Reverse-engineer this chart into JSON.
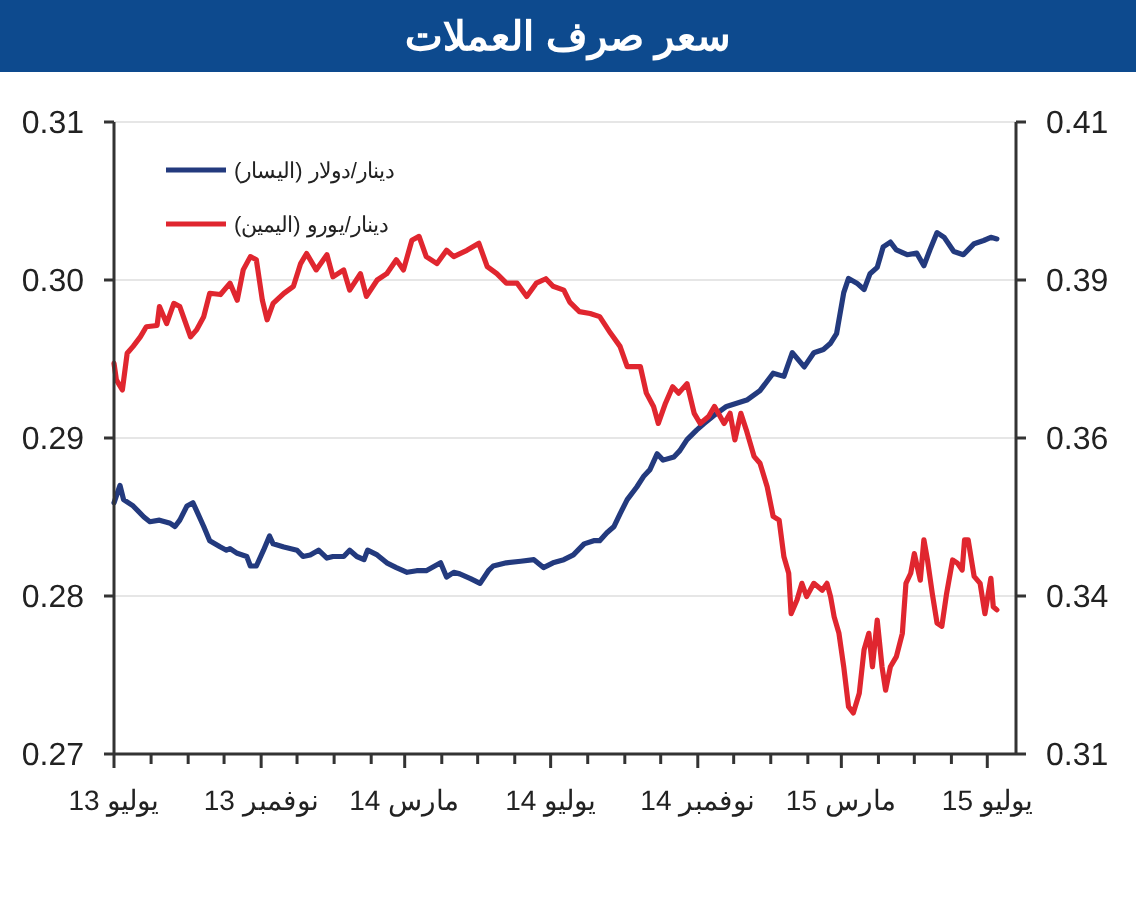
{
  "chart_data": {
    "type": "line",
    "title": "سعر صرف العملات",
    "xlim": [
      "2013-07-01",
      "2015-07-25"
    ],
    "xticks": [
      {
        "value": "2013-07-01",
        "label": "يوليو 13"
      },
      {
        "value": "2013-08-01",
        "label": null
      },
      {
        "value": "2013-09-01",
        "label": null
      },
      {
        "value": "2013-10-01",
        "label": null
      },
      {
        "value": "2013-11-01",
        "label": "نوفمبر 13"
      },
      {
        "value": "2013-12-01",
        "label": null
      },
      {
        "value": "2014-01-01",
        "label": null
      },
      {
        "value": "2014-02-01",
        "label": null
      },
      {
        "value": "2014-03-01",
        "label": "مارس 14"
      },
      {
        "value": "2014-04-01",
        "label": null
      },
      {
        "value": "2014-05-01",
        "label": null
      },
      {
        "value": "2014-06-01",
        "label": null
      },
      {
        "value": "2014-07-01",
        "label": "يوليو 14"
      },
      {
        "value": "2014-08-01",
        "label": null
      },
      {
        "value": "2014-09-01",
        "label": null
      },
      {
        "value": "2014-10-01",
        "label": null
      },
      {
        "value": "2014-11-01",
        "label": "نوفمبر 14"
      },
      {
        "value": "2014-12-01",
        "label": null
      },
      {
        "value": "2015-01-01",
        "label": null
      },
      {
        "value": "2015-02-01",
        "label": null
      },
      {
        "value": "2015-03-01",
        "label": "مارس 15"
      },
      {
        "value": "2015-04-01",
        "label": null
      },
      {
        "value": "2015-05-01",
        "label": null
      },
      {
        "value": "2015-06-01",
        "label": null
      },
      {
        "value": "2015-07-01",
        "label": "يوليو 15"
      }
    ],
    "ylim": [
      0.27,
      0.31
    ],
    "yticks": [
      0.27,
      0.28,
      0.29,
      {
        "value": 0.3,
        "label": "0.30"
      },
      0.31
    ],
    "y2lim": [
      0.31,
      0.41
    ],
    "y2ticks": [
      0.31,
      {
        "value": 0.335,
        "label": "0.34"
      },
      0.36,
      {
        "value": 0.385,
        "label": "0.39"
      },
      0.41
    ],
    "grid": "y",
    "legend": "top left",
    "series": [
      {
        "name": "دينار/دولار (اليسار)",
        "color": "#233a7e",
        "x": [
          "2013-07-01",
          "2013-07-06",
          "2013-07-09",
          "2013-07-17",
          "2013-07-26",
          "2013-07-31",
          "2013-08-08",
          "2013-08-17",
          "2013-08-21",
          "2013-08-25",
          "2013-08-31",
          "2013-09-05",
          "2013-09-08",
          "2013-09-14",
          "2013-09-19",
          "2013-09-28",
          "2013-10-03",
          "2013-10-06",
          "2013-10-12",
          "2013-10-20",
          "2013-10-23",
          "2013-10-28",
          "2013-11-03",
          "2013-11-08",
          "2013-11-11",
          "2013-11-20",
          "2013-12-01",
          "2013-12-06",
          "2013-12-12",
          "2013-12-19",
          "2013-12-26",
          "2013-12-31",
          "2014-01-09",
          "2014-01-14",
          "2014-01-20",
          "2014-01-26",
          "2014-01-29",
          "2014-02-06",
          "2014-02-14",
          "2014-02-22",
          "2014-03-03",
          "2014-03-11",
          "2014-03-19",
          "2014-03-31",
          "2014-04-05",
          "2014-04-11",
          "2014-04-16",
          "2014-04-25",
          "2014-05-03",
          "2014-05-10",
          "2014-05-14",
          "2014-05-25",
          "2014-06-06",
          "2014-06-17",
          "2014-06-25",
          "2014-07-03",
          "2014-07-12",
          "2014-07-20",
          "2014-07-29",
          "2014-08-06",
          "2014-08-11",
          "2014-08-17",
          "2014-08-23",
          "2014-08-28",
          "2014-09-03",
          "2014-09-11",
          "2014-09-17",
          "2014-09-22",
          "2014-09-28",
          "2014-10-03",
          "2014-10-12",
          "2014-10-17",
          "2014-10-23",
          "2014-10-31",
          "2014-11-06",
          "2014-11-14",
          "2014-11-25",
          "2014-12-12",
          "2014-12-23",
          "2015-01-03",
          "2015-01-12",
          "2015-01-19",
          "2015-01-29",
          "2015-02-06",
          "2015-02-14",
          "2015-02-20",
          "2015-02-25",
          "2015-03-03",
          "2015-03-07",
          "2015-03-14",
          "2015-03-20",
          "2015-03-25",
          "2015-03-31",
          "2015-04-05",
          "2015-04-11",
          "2015-04-16",
          "2015-04-25",
          "2015-05-03",
          "2015-05-09",
          "2015-05-14",
          "2015-05-20",
          "2015-05-26",
          "2015-06-03",
          "2015-06-11",
          "2015-06-20",
          "2015-06-28",
          "2015-07-04",
          "2015-07-09"
        ],
        "values": [
          0.2859,
          0.287,
          0.2861,
          0.2857,
          0.285,
          0.2847,
          0.2848,
          0.2846,
          0.2844,
          0.2848,
          0.2857,
          0.2859,
          0.2854,
          0.2844,
          0.2835,
          0.2831,
          0.2829,
          0.283,
          0.2827,
          0.2825,
          0.2819,
          0.2819,
          0.2829,
          0.2838,
          0.2833,
          0.2831,
          0.2829,
          0.2825,
          0.2826,
          0.2829,
          0.2824,
          0.2825,
          0.2825,
          0.2829,
          0.2825,
          0.2823,
          0.2829,
          0.2826,
          0.2821,
          0.2818,
          0.2815,
          0.2816,
          0.2816,
          0.2821,
          0.2812,
          0.2815,
          0.2814,
          0.2811,
          0.2808,
          0.2816,
          0.2819,
          0.2821,
          0.2822,
          0.2823,
          0.2818,
          0.2821,
          0.2823,
          0.2826,
          0.2833,
          0.2835,
          0.2835,
          0.284,
          0.2844,
          0.2852,
          0.2861,
          0.2869,
          0.2876,
          0.288,
          0.289,
          0.2886,
          0.2888,
          0.2892,
          0.2899,
          0.2905,
          0.2909,
          0.2914,
          0.292,
          0.2924,
          0.293,
          0.2941,
          0.2939,
          0.2954,
          0.2945,
          0.2954,
          0.2956,
          0.296,
          0.2966,
          0.2992,
          0.3001,
          0.2998,
          0.2994,
          0.3004,
          0.3008,
          0.3021,
          0.3024,
          0.3019,
          0.3016,
          0.3017,
          0.3009,
          0.3019,
          0.303,
          0.3027,
          0.3018,
          0.3016,
          0.3023,
          0.3025,
          0.3027,
          0.3026
        ]
      },
      {
        "name": "دينار/يورو (اليمين)",
        "color": "#e0262f",
        "axis": "y2",
        "x": [
          "2013-07-01",
          "2013-07-03",
          "2013-07-08",
          "2013-07-12",
          "2013-07-17",
          "2013-07-23",
          "2013-07-28",
          "2013-08-06",
          "2013-08-08",
          "2013-08-14",
          "2013-08-20",
          "2013-08-25",
          "2013-09-03",
          "2013-09-08",
          "2013-09-14",
          "2013-09-19",
          "2013-09-28",
          "2013-10-06",
          "2013-10-12",
          "2013-10-17",
          "2013-10-23",
          "2013-10-28",
          "2013-11-02",
          "2013-11-06",
          "2013-11-11",
          "2013-11-20",
          "2013-11-28",
          "2013-12-04",
          "2013-12-09",
          "2013-12-17",
          "2013-12-26",
          "2013-12-31",
          "2014-01-09",
          "2014-01-14",
          "2014-01-23",
          "2014-01-28",
          "2014-02-06",
          "2014-02-14",
          "2014-02-22",
          "2014-02-28",
          "2014-03-07",
          "2014-03-13",
          "2014-03-19",
          "2014-03-28",
          "2014-04-05",
          "2014-04-11",
          "2014-04-22",
          "2014-05-02",
          "2014-05-09",
          "2014-05-17",
          "2014-05-25",
          "2014-06-03",
          "2014-06-11",
          "2014-06-19",
          "2014-06-27",
          "2014-07-03",
          "2014-07-12",
          "2014-07-17",
          "2014-07-25",
          "2014-08-03",
          "2014-08-11",
          "2014-08-20",
          "2014-08-28",
          "2014-09-03",
          "2014-09-14",
          "2014-09-19",
          "2014-09-25",
          "2014-09-29",
          "2014-10-05",
          "2014-10-11",
          "2014-10-16",
          "2014-10-23",
          "2014-10-29",
          "2014-11-03",
          "2014-11-10",
          "2014-11-15",
          "2014-11-23",
          "2014-11-28",
          "2014-12-02",
          "2014-12-07",
          "2014-12-12",
          "2014-12-18",
          "2014-12-23",
          "2014-12-29",
          "2015-01-03",
          "2015-01-08",
          "2015-01-12",
          "2015-01-16",
          "2015-01-18",
          "2015-01-23",
          "2015-01-27",
          "2015-01-31",
          "2015-02-06",
          "2015-02-13",
          "2015-02-17",
          "2015-02-20",
          "2015-02-23",
          "2015-02-27",
          "2015-03-03",
          "2015-03-07",
          "2015-03-11",
          "2015-03-16",
          "2015-03-20",
          "2015-03-24",
          "2015-03-27",
          "2015-03-31",
          "2015-04-04",
          "2015-04-07",
          "2015-04-11",
          "2015-04-16",
          "2015-04-21",
          "2015-04-24",
          "2015-04-28",
          "2015-05-01",
          "2015-05-06",
          "2015-05-09",
          "2015-05-12",
          "2015-05-16",
          "2015-05-20",
          "2015-05-24",
          "2015-05-28",
          "2015-06-02",
          "2015-06-06",
          "2015-06-10",
          "2015-06-12",
          "2015-06-15",
          "2015-06-20",
          "2015-06-25",
          "2015-06-29",
          "2015-07-04",
          "2015-07-06",
          "2015-07-09"
        ],
        "values": [
          0.3718,
          0.3692,
          0.3676,
          0.3734,
          0.3745,
          0.376,
          0.3776,
          0.3778,
          0.3808,
          0.3781,
          0.3813,
          0.3808,
          0.376,
          0.3771,
          0.3792,
          0.3829,
          0.3827,
          0.3845,
          0.3818,
          0.3866,
          0.3887,
          0.3882,
          0.3818,
          0.3787,
          0.3813,
          0.3829,
          0.384,
          0.3876,
          0.3892,
          0.3866,
          0.389,
          0.3855,
          0.3866,
          0.3834,
          0.386,
          0.3824,
          0.385,
          0.386,
          0.3882,
          0.3866,
          0.3913,
          0.3919,
          0.3887,
          0.3876,
          0.3897,
          0.3887,
          0.3897,
          0.3908,
          0.3871,
          0.386,
          0.3845,
          0.3845,
          0.3824,
          0.3845,
          0.3852,
          0.384,
          0.3834,
          0.3815,
          0.38,
          0.3797,
          0.3792,
          0.3766,
          0.3745,
          0.3713,
          0.3713,
          0.3671,
          0.365,
          0.3623,
          0.3655,
          0.3681,
          0.3671,
          0.3686,
          0.3639,
          0.3623,
          0.3634,
          0.365,
          0.3623,
          0.3639,
          0.3597,
          0.3639,
          0.361,
          0.3571,
          0.356,
          0.3523,
          0.3476,
          0.347,
          0.3412,
          0.3386,
          0.3322,
          0.3344,
          0.337,
          0.3349,
          0.337,
          0.3359,
          0.337,
          0.3349,
          0.3317,
          0.3291,
          0.3238,
          0.3175,
          0.3165,
          0.3196,
          0.3265,
          0.3291,
          0.3238,
          0.3312,
          0.3238,
          0.3201,
          0.3238,
          0.3254,
          0.3291,
          0.337,
          0.3386,
          0.3417,
          0.3375,
          0.3439,
          0.3407,
          0.3354,
          0.3307,
          0.3302,
          0.3354,
          0.3407,
          0.3402,
          0.3391,
          0.3439,
          0.3439,
          0.3381,
          0.337,
          0.3322,
          0.3378,
          0.3333,
          0.3328
        ]
      }
    ]
  }
}
